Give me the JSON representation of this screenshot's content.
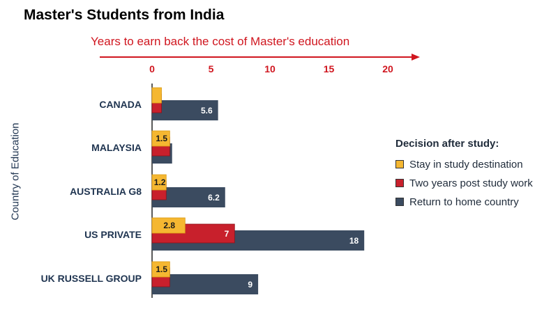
{
  "header": {
    "title": "Master's Students from India",
    "subtitle": "Years to earn back the cost of Master's education"
  },
  "chart_data": {
    "type": "bar",
    "orientation": "horizontal",
    "title": "Master's Students from India",
    "subtitle": "Years to earn back the cost of Master's education",
    "ylabel": "Country of Education",
    "xlabel": "",
    "xlim": [
      0,
      20
    ],
    "xticks": [
      "0",
      "5",
      "10",
      "15",
      "20"
    ],
    "x_axis_position": "top",
    "grid": false,
    "categories": [
      "CANADA",
      "MALAYSIA",
      "AUSTRALIA G8",
      "US PRIVATE",
      "UK RUSSELL GROUP"
    ],
    "legend": {
      "title": "Decision after study:",
      "placement": "right"
    },
    "series": [
      {
        "name": "Stay in study destination",
        "color": "#f5b731",
        "values": [
          0.8,
          1.5,
          1.2,
          2.8,
          1.5
        ],
        "labels": [
          "",
          "1.5",
          "1.2",
          "2.8",
          "1.5"
        ]
      },
      {
        "name": "Two years post study work",
        "color": "#c8202c",
        "values": [
          0.8,
          1.5,
          1.2,
          7,
          1.5
        ],
        "labels": [
          "",
          "",
          "",
          "7",
          ""
        ]
      },
      {
        "name": "Return to home country",
        "color": "#3b4b60",
        "values": [
          5.6,
          1.7,
          6.2,
          18,
          9
        ],
        "labels": [
          "5.6",
          "",
          "6.2",
          "18",
          "9"
        ]
      }
    ]
  }
}
